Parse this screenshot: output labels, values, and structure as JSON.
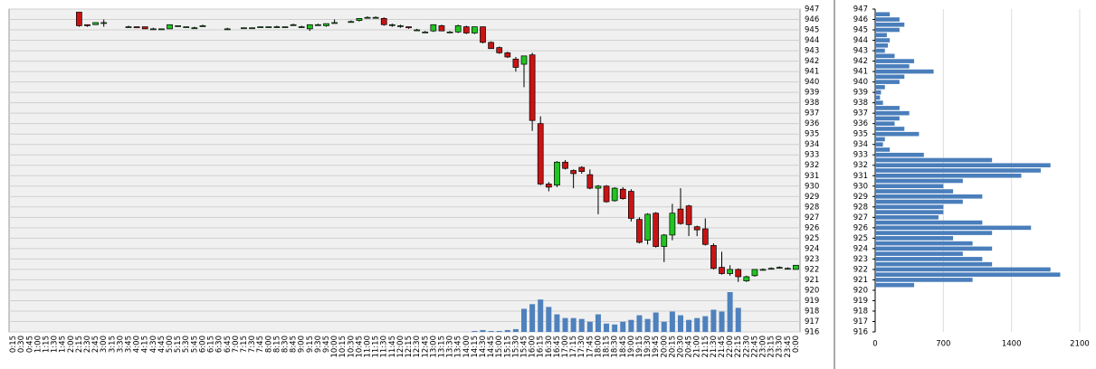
{
  "chart_data": [
    {
      "type": "candlestick",
      "categories": [
        "0:15",
        "0:30",
        "0:45",
        "1:00",
        "1:15",
        "1:30",
        "1:45",
        "2:00",
        "2:15",
        "2:30",
        "2:45",
        "3:00",
        "3:15",
        "3:30",
        "3:45",
        "4:00",
        "4:15",
        "4:30",
        "4:45",
        "5:00",
        "5:15",
        "5:30",
        "5:45",
        "6:00",
        "6:15",
        "6:30",
        "6:45",
        "7:00",
        "7:15",
        "7:30",
        "7:45",
        "8:00",
        "8:15",
        "8:30",
        "8:45",
        "9:00",
        "9:15",
        "9:30",
        "9:45",
        "10:00",
        "10:15",
        "10:30",
        "10:45",
        "11:00",
        "11:15",
        "11:30",
        "11:45",
        "12:00",
        "12:15",
        "12:30",
        "12:45",
        "13:00",
        "13:15",
        "13:30",
        "13:45",
        "14:00",
        "14:15",
        "14:30",
        "14:45",
        "15:00",
        "15:15",
        "15:30",
        "15:45",
        "16:00",
        "16:15",
        "16:30",
        "16:45",
        "17:00",
        "17:15",
        "17:30",
        "17:45",
        "18:00",
        "18:15",
        "18:30",
        "18:45",
        "19:00",
        "19:15",
        "19:30",
        "19:45",
        "20:00",
        "20:15",
        "20:30",
        "20:45",
        "21:00",
        "21:15",
        "21:30",
        "21:45",
        "22:00",
        "22:15",
        "22:30",
        "22:45",
        "23:00",
        "23:15",
        "23:30",
        "23:45",
        "0:00"
      ],
      "open": [
        null,
        null,
        null,
        null,
        null,
        null,
        null,
        null,
        946.7,
        945.5,
        945.5,
        945.7,
        null,
        null,
        945.3,
        945.3,
        945.3,
        945.1,
        945.1,
        945.1,
        945.4,
        945.3,
        945.2,
        945.4,
        null,
        null,
        945.1,
        null,
        945.2,
        945.2,
        945.3,
        945.3,
        945.3,
        945.3,
        945.5,
        945.3,
        945.1,
        945.5,
        945.4,
        945.7,
        null,
        945.8,
        945.9,
        946.2,
        946.2,
        946.1,
        945.5,
        945.4,
        945.3,
        945.0,
        944.8,
        944.9,
        945.4,
        944.8,
        944.8,
        945.3,
        944.7,
        945.3,
        943.8,
        943.3,
        942.8,
        942.2,
        941.7,
        942.6,
        936.0,
        930.2,
        930.1,
        932.3,
        931.5,
        931.8,
        931.1,
        929.8,
        930.0,
        928.6,
        929.7,
        929.5,
        926.8,
        924.8,
        927.4,
        924.2,
        925.3,
        927.8,
        928.1,
        926.1,
        925.9,
        924.3,
        922.2,
        921.6,
        922.0,
        920.9,
        921.4,
        922.0,
        922.1,
        922.2,
        922.1,
        922.0
      ],
      "high": [
        null,
        null,
        null,
        null,
        null,
        null,
        null,
        null,
        946.7,
        945.5,
        945.7,
        946.0,
        null,
        null,
        945.4,
        945.3,
        945.3,
        945.2,
        945.1,
        945.5,
        945.4,
        945.3,
        945.3,
        945.5,
        null,
        null,
        945.2,
        null,
        945.2,
        945.2,
        945.3,
        945.3,
        945.4,
        945.3,
        945.6,
        945.4,
        945.5,
        945.6,
        945.6,
        946.0,
        null,
        945.9,
        946.1,
        946.3,
        946.3,
        946.2,
        945.6,
        945.5,
        945.3,
        945.1,
        944.9,
        945.5,
        945.5,
        944.9,
        945.5,
        945.4,
        945.3,
        945.3,
        943.9,
        943.4,
        942.9,
        942.4,
        942.5,
        942.8,
        936.7,
        930.4,
        932.4,
        932.5,
        931.6,
        931.9,
        931.6,
        930.1,
        930.1,
        929.9,
        929.9,
        929.7,
        927.0,
        927.4,
        927.5,
        925.4,
        928.3,
        929.8,
        928.2,
        926.2,
        926.9,
        924.5,
        923.7,
        922.4,
        922.1,
        921.4,
        922.0,
        922.1,
        922.2,
        922.3,
        922.2,
        922.4
      ],
      "low": [
        null,
        null,
        null,
        null,
        null,
        null,
        null,
        null,
        945.3,
        945.3,
        945.5,
        945.3,
        null,
        null,
        945.2,
        945.2,
        945.1,
        945.1,
        945.0,
        945.1,
        945.3,
        945.2,
        945.2,
        945.3,
        null,
        null,
        945.0,
        null,
        945.1,
        945.1,
        945.2,
        945.2,
        945.3,
        945.2,
        945.4,
        945.2,
        944.9,
        945.4,
        945.3,
        945.6,
        null,
        945.7,
        945.8,
        946.1,
        946.1,
        945.4,
        945.3,
        945.2,
        945.1,
        944.9,
        944.7,
        944.8,
        944.9,
        944.7,
        944.7,
        944.6,
        944.6,
        943.7,
        943.2,
        942.7,
        942.3,
        941.0,
        939.5,
        935.3,
        930.1,
        929.5,
        929.9,
        931.6,
        929.8,
        931.2,
        929.7,
        927.3,
        928.4,
        928.5,
        928.7,
        926.6,
        924.5,
        924.4,
        924.1,
        922.7,
        924.8,
        926.3,
        925.2,
        925.2,
        924.3,
        922.0,
        921.5,
        921.4,
        920.8,
        920.8,
        921.3,
        921.9,
        922.0,
        922.1,
        922.0,
        922.0
      ],
      "close": [
        null,
        null,
        null,
        null,
        null,
        null,
        null,
        null,
        945.4,
        945.4,
        945.7,
        945.7,
        null,
        null,
        945.3,
        945.2,
        945.1,
        945.1,
        945.1,
        945.5,
        945.4,
        945.3,
        945.2,
        945.4,
        null,
        null,
        945.1,
        null,
        945.2,
        945.2,
        945.3,
        945.3,
        945.3,
        945.3,
        945.5,
        945.3,
        945.5,
        945.5,
        945.6,
        945.7,
        null,
        945.8,
        946.1,
        946.2,
        946.2,
        945.5,
        945.5,
        945.4,
        945.2,
        945.0,
        944.8,
        945.5,
        944.9,
        944.8,
        945.4,
        944.7,
        945.3,
        943.8,
        943.2,
        942.8,
        942.4,
        941.4,
        942.5,
        936.3,
        930.2,
        929.9,
        932.3,
        931.7,
        931.2,
        931.4,
        929.8,
        930.0,
        928.5,
        929.8,
        928.8,
        926.9,
        924.6,
        927.3,
        924.2,
        925.3,
        927.4,
        926.4,
        926.3,
        925.8,
        924.4,
        922.1,
        921.6,
        922.0,
        921.3,
        921.3,
        922.0,
        922.0,
        922.1,
        922.2,
        922.1,
        922.4
      ],
      "volume": [
        null,
        null,
        null,
        null,
        null,
        null,
        null,
        null,
        0,
        0,
        0,
        0,
        null,
        null,
        0,
        0,
        0,
        0,
        0,
        0,
        0,
        0,
        0,
        0,
        null,
        null,
        0,
        null,
        0,
        0,
        0,
        0,
        0,
        0,
        0,
        0,
        0,
        0,
        0,
        0,
        null,
        0,
        0,
        0,
        0,
        0,
        0,
        0,
        0,
        0,
        0,
        0,
        0,
        0,
        0,
        0,
        1,
        2,
        1,
        1,
        2,
        3,
        25,
        30,
        35,
        27,
        19,
        15,
        15,
        14,
        11,
        19,
        9,
        8,
        11,
        13,
        18,
        14,
        21,
        11,
        22,
        18,
        13,
        15,
        17,
        24,
        22,
        43,
        26,
        0,
        0,
        0,
        0,
        0,
        0,
        0
      ],
      "up_color": "#22c322",
      "down_color": "#c81414",
      "volume_color": "#4f81bd",
      "ylim": [
        916,
        947
      ],
      "yticks": [
        916,
        917,
        918,
        919,
        920,
        921,
        922,
        923,
        924,
        925,
        926,
        927,
        928,
        929,
        930,
        931,
        932,
        933,
        934,
        935,
        936,
        937,
        938,
        939,
        940,
        941,
        942,
        943,
        944,
        945,
        946,
        947
      ],
      "grid": true
    },
    {
      "type": "hbar",
      "y": [
        946.5,
        946,
        945.5,
        945,
        944.5,
        944,
        943.5,
        943,
        942.5,
        942,
        941.5,
        941,
        940.5,
        940,
        939.5,
        939,
        938.5,
        938,
        937.5,
        937,
        936.5,
        936,
        935.5,
        935,
        934.5,
        934,
        933.5,
        933,
        932.5,
        932,
        931.5,
        931,
        930.5,
        930,
        929.5,
        929,
        928.5,
        928,
        927.5,
        927,
        926.5,
        926,
        925.5,
        925,
        924.5,
        924,
        923.5,
        923,
        922.5,
        922,
        921.5,
        921,
        920.5
      ],
      "values": [
        150,
        250,
        300,
        250,
        120,
        150,
        130,
        100,
        200,
        400,
        350,
        600,
        300,
        250,
        100,
        60,
        50,
        80,
        250,
        350,
        250,
        200,
        300,
        450,
        100,
        80,
        150,
        500,
        1200,
        1800,
        1700,
        1500,
        900,
        700,
        800,
        1100,
        900,
        700,
        700,
        650,
        1100,
        1600,
        1200,
        800,
        1000,
        1200,
        900,
        1100,
        1200,
        1800,
        1900,
        1000,
        400
      ],
      "color": "#4a7ebb",
      "xlim": [
        0,
        2100
      ],
      "xticks": [
        0,
        700,
        1400,
        2100
      ],
      "ylim": [
        916,
        947
      ],
      "yticks": [
        916,
        917,
        918,
        919,
        920,
        921,
        922,
        923,
        924,
        925,
        926,
        927,
        928,
        929,
        930,
        931,
        932,
        933,
        934,
        935,
        936,
        937,
        938,
        939,
        940,
        941,
        942,
        943,
        944,
        945,
        946,
        947
      ],
      "grid": true
    }
  ]
}
